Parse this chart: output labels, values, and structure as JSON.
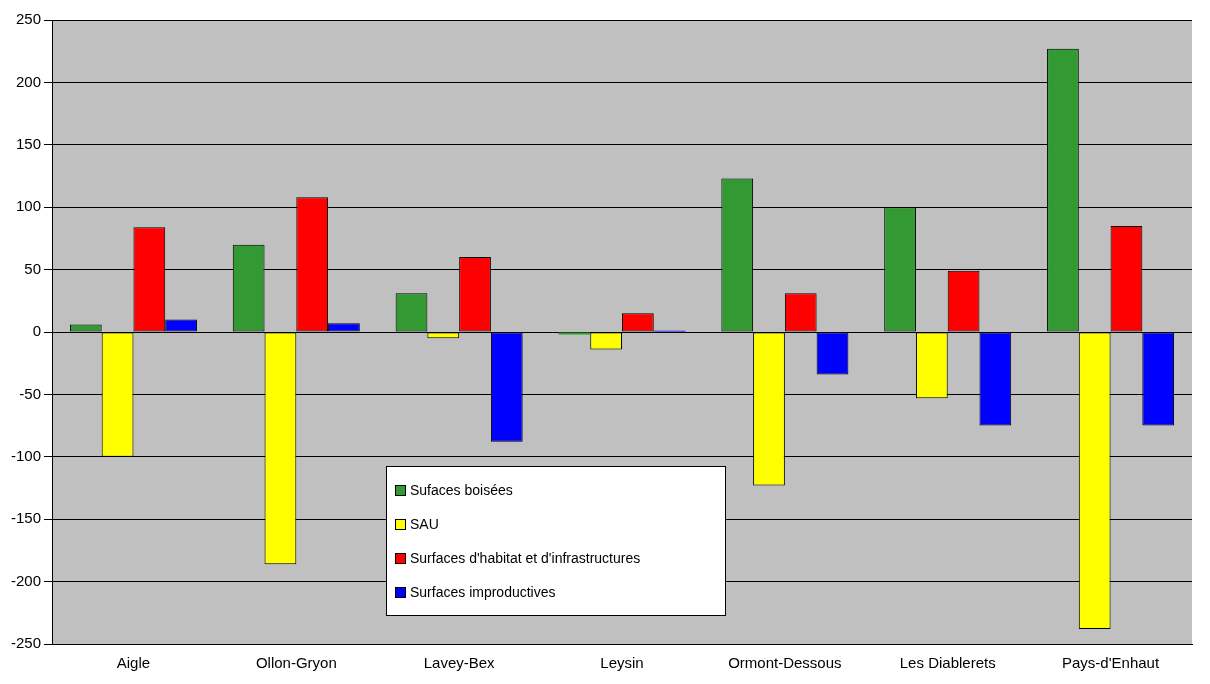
{
  "chart_data": {
    "type": "bar",
    "categories": [
      "Aigle",
      "Ollon-Gryon",
      "Lavey-Bex",
      "Leysin",
      "Ormont-Dessous",
      "Les Diablerets",
      "Pays-d'Enhaut"
    ],
    "series": [
      {
        "name": "Sufaces boisées",
        "color": "#339933",
        "values": [
          6,
          70,
          31,
          -2,
          123,
          100,
          227
        ]
      },
      {
        "name": "SAU",
        "color": "#ffff00",
        "values": [
          -100,
          -186,
          -5,
          -14,
          -123,
          -53,
          -238
        ]
      },
      {
        "name": "Surfaces d'habitat et d'infrastructures",
        "color": "#ff0000",
        "values": [
          84,
          108,
          60,
          15,
          31,
          49,
          85
        ]
      },
      {
        "name": "Surfaces improductives",
        "color": "#0000ff",
        "values": [
          10,
          7,
          -88,
          1,
          -34,
          -75,
          -75
        ]
      }
    ],
    "ylim": [
      -250,
      250
    ],
    "yticks": [
      -250,
      -200,
      -150,
      -100,
      -50,
      0,
      50,
      100,
      150,
      200,
      250
    ],
    "grid": "y",
    "legend": "bottom"
  }
}
